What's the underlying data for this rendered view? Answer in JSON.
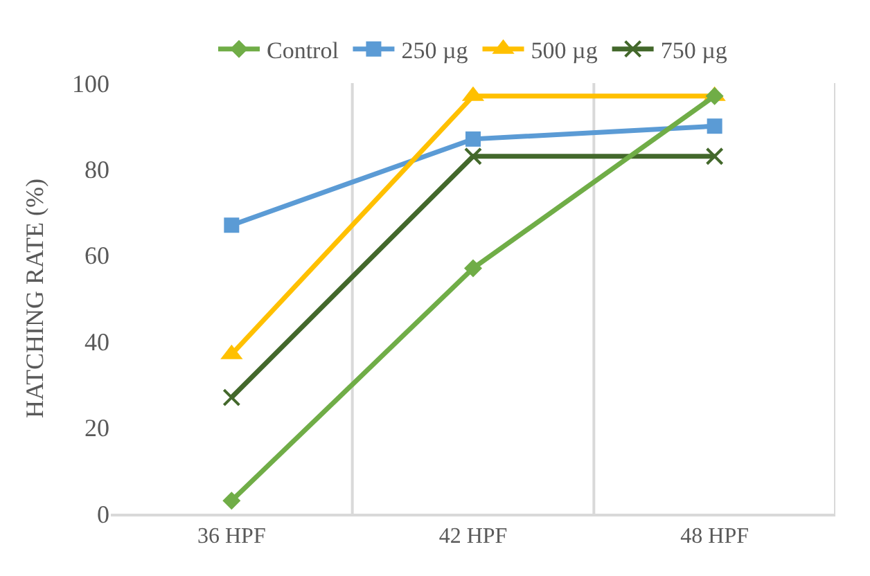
{
  "chart_data": {
    "type": "line",
    "ylabel": "HATCHING RATE (%)",
    "categories": [
      "36 HPF",
      "42 HPF",
      "48 HPF"
    ],
    "series": [
      {
        "name": "Control",
        "color": "#70ad47",
        "marker": "diamond",
        "values": [
          3,
          57,
          97
        ]
      },
      {
        "name": "250 µg",
        "color": "#5b9bd5",
        "marker": "square",
        "values": [
          67,
          87,
          90
        ]
      },
      {
        "name": "500 µg",
        "color": "#ffc000",
        "marker": "triangle",
        "values": [
          37,
          97,
          97
        ]
      },
      {
        "name": "750 µg",
        "color": "#43682b",
        "marker": "cross",
        "values": [
          27,
          83,
          83
        ]
      }
    ],
    "ylim": [
      0,
      100
    ],
    "yticks": [
      0,
      20,
      40,
      60,
      80,
      100
    ],
    "grid": "x",
    "legend": "top",
    "line_style": "solid"
  }
}
